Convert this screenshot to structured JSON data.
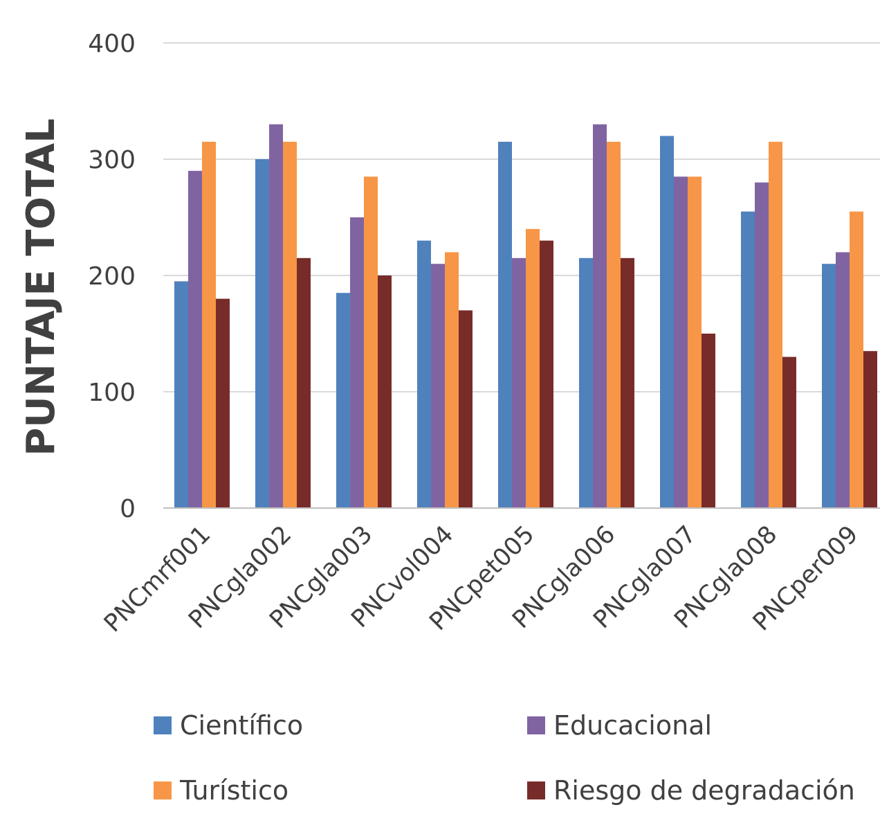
{
  "chart_data": {
    "type": "bar",
    "title": "",
    "xlabel": "",
    "ylabel": "PUNTAJE TOTAL",
    "ylim": [
      0,
      400
    ],
    "yticks": [
      0,
      100,
      200,
      300,
      400
    ],
    "grid": true,
    "legend_position": "bottom",
    "categories": [
      "PNCmrf001",
      "PNCgla002",
      "PNCgla003",
      "PNCvol004",
      "PNCpet005",
      "PNCgla006",
      "PNCgla007",
      "PNCgla008",
      "PNCper009"
    ],
    "series": [
      {
        "name": "Científico",
        "color": "#4F81BD",
        "values": [
          195,
          300,
          185,
          230,
          315,
          215,
          320,
          255,
          210
        ]
      },
      {
        "name": "Educacional",
        "color": "#8064A2",
        "values": [
          290,
          330,
          250,
          210,
          215,
          330,
          285,
          280,
          220
        ]
      },
      {
        "name": "Turístico",
        "color": "#F79646",
        "values": [
          315,
          315,
          285,
          220,
          240,
          315,
          285,
          315,
          255
        ]
      },
      {
        "name": "Riesgo de degradación",
        "color": "#772C2A",
        "values": [
          180,
          215,
          200,
          170,
          230,
          215,
          150,
          130,
          135
        ]
      }
    ]
  }
}
